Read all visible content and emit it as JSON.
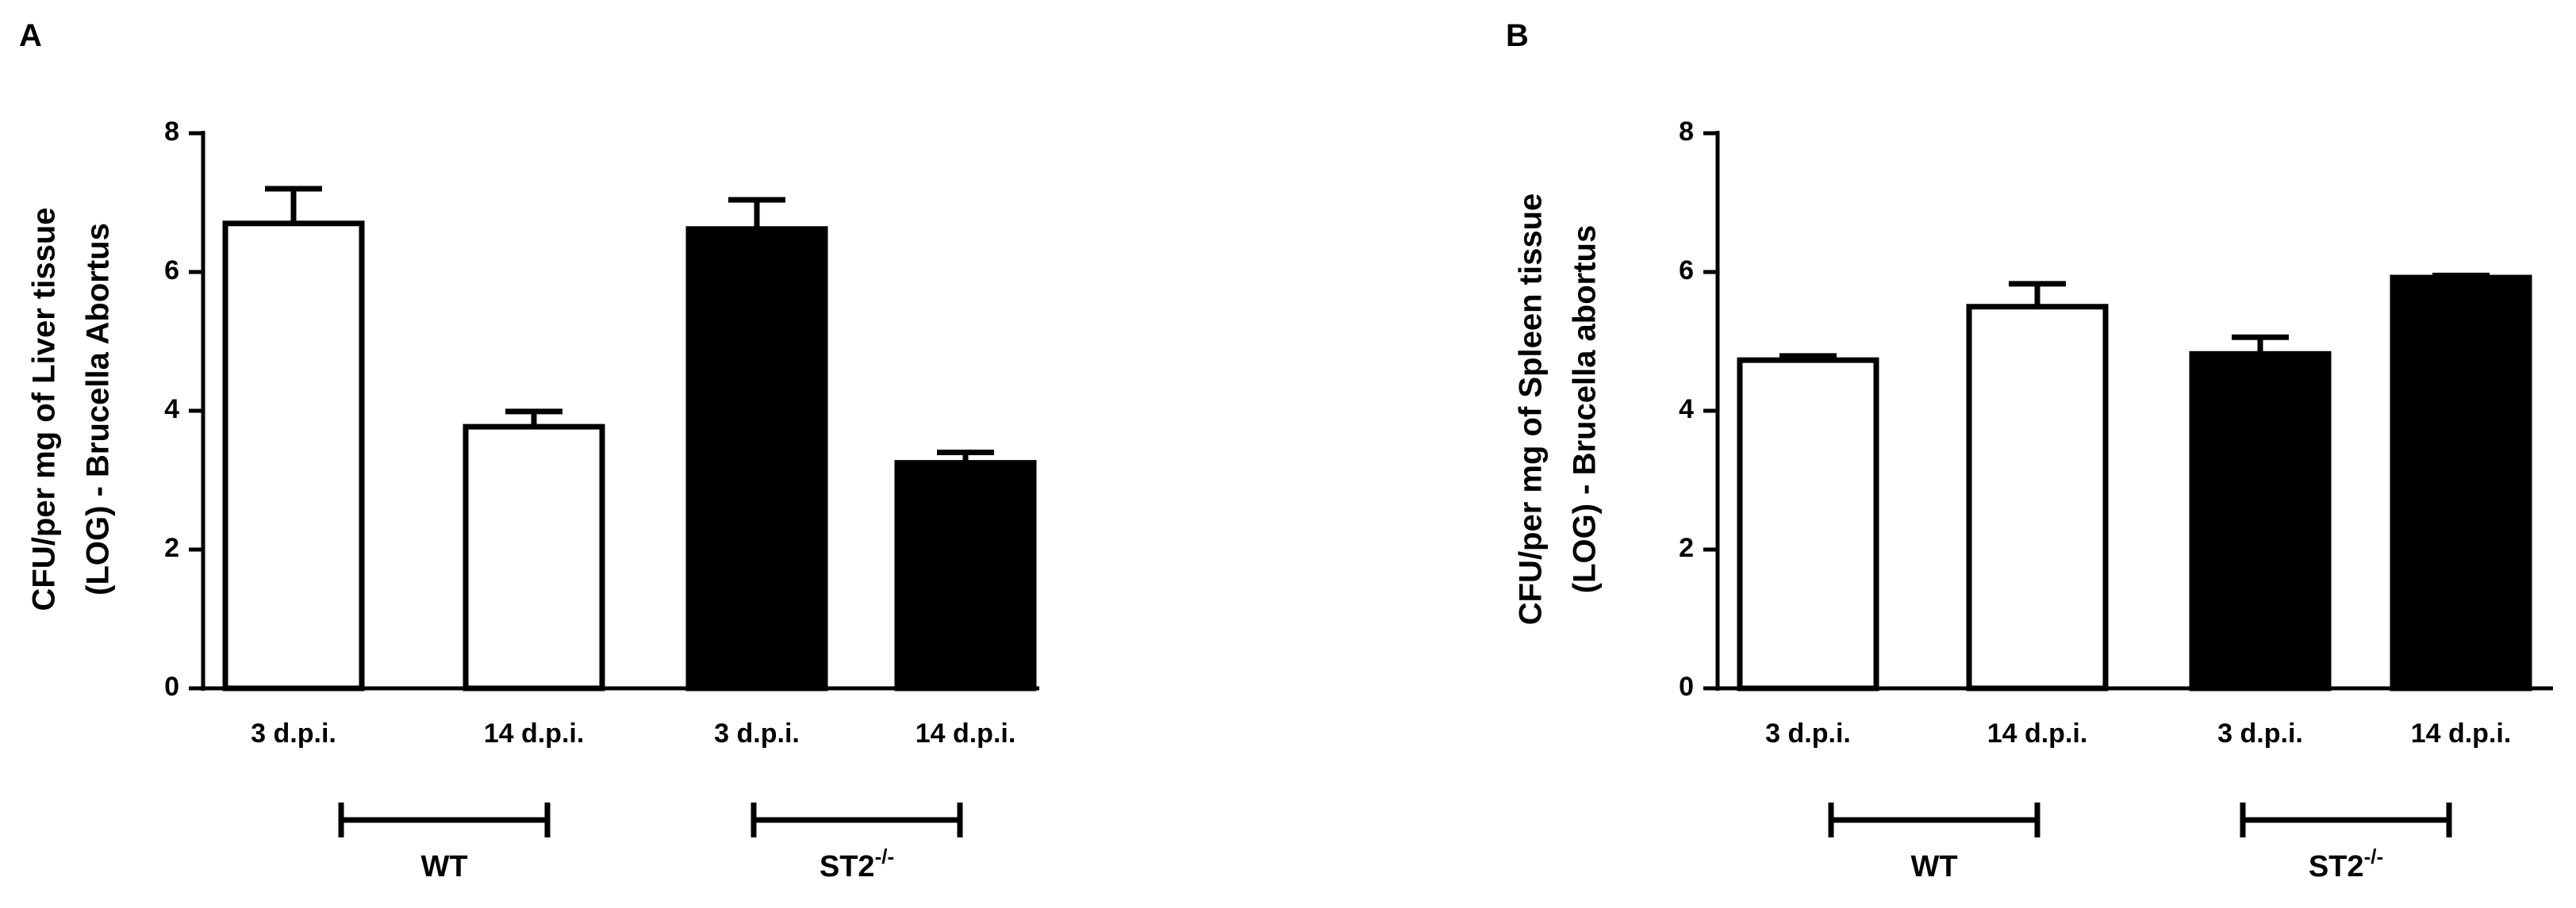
{
  "chart_data": [
    {
      "type": "bar",
      "panel_label": "A",
      "ylabel_line1": "CFU/per mg of Liver tissue",
      "ylabel_line2": "(LOG) - Brucella Abortus",
      "ylim": [
        0,
        8
      ],
      "yticks": [
        0,
        2,
        4,
        6,
        8
      ],
      "categories": [
        "3 d.p.i.",
        "14 d.p.i.",
        "3 d.p.i.",
        "14 d.p.i."
      ],
      "values": [
        6.7,
        3.77,
        6.62,
        3.25
      ],
      "errors": [
        0.5,
        0.22,
        0.42,
        0.15
      ],
      "fills": [
        "#ffffff",
        "#ffffff",
        "#000000",
        "#000000"
      ],
      "groups": [
        {
          "label": "WT",
          "sup": "",
          "categories": [
            0,
            1
          ]
        },
        {
          "label": "ST2",
          "sup": "-/-",
          "categories": [
            2,
            3
          ]
        }
      ]
    },
    {
      "type": "bar",
      "panel_label": "B",
      "ylabel_line1": "CFU/per mg of Spleen tissue",
      "ylabel_line2": "(LOG) - Brucella abortus",
      "ylim": [
        0,
        8
      ],
      "yticks": [
        0,
        2,
        4,
        6,
        8
      ],
      "categories": [
        "3 d.p.i.",
        "14 d.p.i.",
        "3 d.p.i.",
        "14 d.p.i."
      ],
      "values": [
        4.73,
        5.5,
        4.82,
        5.92
      ],
      "errors": [
        0.06,
        0.33,
        0.24,
        0.03
      ],
      "fills": [
        "#ffffff",
        "#ffffff",
        "#000000",
        "#000000"
      ],
      "groups": [
        {
          "label": "WT",
          "sup": "",
          "categories": [
            0,
            1
          ]
        },
        {
          "label": "ST2",
          "sup": "-/-",
          "categories": [
            2,
            3
          ]
        }
      ]
    }
  ]
}
